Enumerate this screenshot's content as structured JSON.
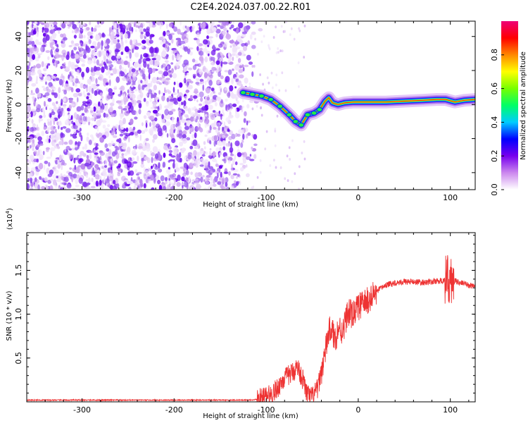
{
  "title": "C2E4.2024.037.00.22.R01",
  "chart_data": [
    {
      "type": "heatmap",
      "xlabel": "Height of straight line (km)",
      "ylabel": "Frequency (Hz)",
      "xlim": [
        -360,
        127
      ],
      "ylim": [
        -50,
        49
      ],
      "x_ticks": [
        -300,
        -200,
        -100,
        0,
        100
      ],
      "x_tick_labels": [
        "-300",
        "-200",
        "-100",
        "0",
        "100"
      ],
      "y_ticks": [
        -40,
        -20,
        0,
        20,
        40
      ],
      "y_tick_labels": [
        "-40",
        "-20",
        "0",
        "20",
        "40"
      ],
      "grid": false,
      "noise_region_x": [
        -360,
        -105
      ],
      "signal_trace": {
        "x": [
          -125,
          -115,
          -105,
          -95,
          -85,
          -75,
          -68,
          -62,
          -55,
          -48,
          -42,
          -36,
          -32,
          -28,
          -22,
          -15,
          -5,
          10,
          30,
          50,
          70,
          85,
          95,
          105,
          115,
          127
        ],
        "y": [
          7,
          6,
          5,
          3,
          -1,
          -6,
          -10,
          -12,
          -6,
          -5,
          -3,
          2,
          4,
          1,
          0,
          1,
          1.5,
          1.5,
          1.5,
          2,
          2.5,
          3,
          3,
          1.5,
          2.5,
          3
        ]
      },
      "colorbar": {
        "label": "Normalized spectral amplitude",
        "range": [
          0.0,
          1.0
        ],
        "ticks": [
          0.0,
          0.2,
          0.4,
          0.6,
          0.8
        ],
        "tick_labels": [
          "0.0",
          "0.2",
          "0.4",
          "0.6",
          "0.8"
        ],
        "colors": [
          "#ffffff",
          "#cc88ee",
          "#7700ee",
          "#0000ff",
          "#00ccff",
          "#00ff66",
          "#77ff00",
          "#ffff00",
          "#ff8800",
          "#ff0000",
          "#ee0077"
        ]
      }
    },
    {
      "type": "line",
      "xlabel": "Height of straight line (km)",
      "ylabel": "SNR (10 * v/v)",
      "y_multiplier_label": "(x10",
      "y_multiplier_exp": "4",
      "y_multiplier_close": ")",
      "xlim": [
        -360,
        127
      ],
      "ylim": [
        0,
        1.93
      ],
      "x_ticks": [
        -300,
        -200,
        -100,
        0,
        100
      ],
      "x_tick_labels": [
        "-300",
        "-200",
        "-100",
        "0",
        "100"
      ],
      "y_ticks": [
        0.5,
        1.0,
        1.5
      ],
      "y_tick_labels": [
        "0.5",
        "1.0",
        "1.5"
      ],
      "line_color": "#ee3333",
      "series": [
        {
          "x": [
            -360,
            -150,
            -115,
            -105,
            -95,
            -88,
            -82,
            -76,
            -70,
            -66,
            -60,
            -56,
            -52,
            -48,
            -44,
            -40,
            -36,
            -33,
            -30,
            -28,
            -26,
            -24,
            -21,
            -18,
            -15,
            -12,
            -9,
            -6,
            -3,
            0,
            5,
            10,
            15,
            20,
            25,
            30,
            40,
            50,
            60,
            70,
            80,
            90,
            98,
            100,
            102,
            106,
            110,
            120,
            127
          ],
          "y": [
            0.02,
            0.02,
            0.02,
            0.04,
            0.08,
            0.15,
            0.25,
            0.3,
            0.35,
            0.4,
            0.25,
            0.1,
            0.05,
            0.08,
            0.15,
            0.35,
            0.55,
            0.75,
            0.85,
            0.8,
            0.72,
            0.75,
            0.85,
            0.8,
            0.88,
            1.0,
            1.02,
            0.98,
            1.05,
            1.08,
            1.12,
            1.15,
            1.2,
            1.25,
            1.3,
            1.33,
            1.36,
            1.37,
            1.37,
            1.36,
            1.37,
            1.38,
            1.4,
            1.38,
            1.36,
            1.38,
            1.36,
            1.33,
            1.32
          ]
        }
      ]
    }
  ]
}
